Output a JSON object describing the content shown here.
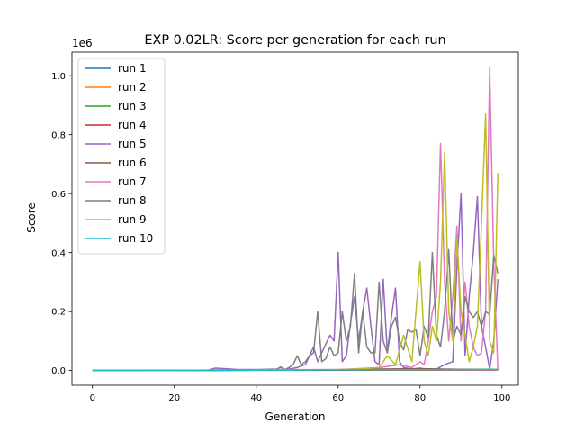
{
  "chart_data": {
    "type": "line",
    "title": "EXP 0.02LR: Score per generation for each run",
    "xlabel": "Generation",
    "ylabel": "Score",
    "y_offset_label": "1e6",
    "xlim": [
      -5,
      104
    ],
    "ylim": [
      -0.05,
      1.08
    ],
    "xticks": [
      0,
      20,
      40,
      60,
      80,
      100
    ],
    "xtick_labels": [
      "0",
      "20",
      "40",
      "60",
      "80",
      "100"
    ],
    "yticks": [
      0.0,
      0.2,
      0.4,
      0.6,
      0.8,
      1.0
    ],
    "ytick_labels": [
      "0.0",
      "0.2",
      "0.4",
      "0.6",
      "0.8",
      "1.0"
    ],
    "grid": false,
    "legend_position": "upper-left",
    "series": [
      {
        "name": "run 1",
        "color": "#1f77b4",
        "points": [
          [
            0,
            0.0
          ],
          [
            20,
            0.0
          ],
          [
            40,
            0.001
          ],
          [
            60,
            0.002
          ],
          [
            80,
            0.003
          ],
          [
            90,
            0.004
          ],
          [
            99,
            0.004
          ]
        ]
      },
      {
        "name": "run 2",
        "color": "#ff7f0e",
        "points": [
          [
            0,
            0.0
          ],
          [
            20,
            0.0
          ],
          [
            40,
            0.001
          ],
          [
            60,
            0.002
          ],
          [
            80,
            0.003
          ],
          [
            99,
            0.003
          ]
        ]
      },
      {
        "name": "run 3",
        "color": "#2ca02c",
        "points": [
          [
            0,
            0.0
          ],
          [
            20,
            0.001
          ],
          [
            40,
            0.001
          ],
          [
            60,
            0.002
          ],
          [
            80,
            0.002
          ],
          [
            99,
            0.003
          ]
        ]
      },
      {
        "name": "run 4",
        "color": "#d62728",
        "points": [
          [
            0,
            0.0
          ],
          [
            20,
            0.0
          ],
          [
            40,
            0.001
          ],
          [
            60,
            0.001
          ],
          [
            80,
            0.002
          ],
          [
            99,
            0.002
          ]
        ]
      },
      {
        "name": "run 5",
        "color": "#9467bd",
        "points": [
          [
            0,
            0.0
          ],
          [
            10,
            0.0
          ],
          [
            20,
            0.0
          ],
          [
            28,
            0.0
          ],
          [
            30,
            0.008
          ],
          [
            35,
            0.004
          ],
          [
            40,
            0.003
          ],
          [
            45,
            0.003
          ],
          [
            48,
            0.005
          ],
          [
            50,
            0.01
          ],
          [
            52,
            0.02
          ],
          [
            54,
            0.08
          ],
          [
            55,
            0.03
          ],
          [
            56,
            0.06
          ],
          [
            57,
            0.09
          ],
          [
            58,
            0.12
          ],
          [
            59,
            0.1
          ],
          [
            60,
            0.4
          ],
          [
            61,
            0.03
          ],
          [
            62,
            0.05
          ],
          [
            63,
            0.16
          ],
          [
            64,
            0.25
          ],
          [
            65,
            0.1
          ],
          [
            66,
            0.2
          ],
          [
            67,
            0.28
          ],
          [
            68,
            0.15
          ],
          [
            69,
            0.03
          ],
          [
            70,
            0.02
          ],
          [
            71,
            0.31
          ],
          [
            72,
            0.06
          ],
          [
            73,
            0.18
          ],
          [
            74,
            0.28
          ],
          [
            75,
            0.03
          ],
          [
            76,
            0.01
          ],
          [
            78,
            0.005
          ],
          [
            80,
            0.008
          ],
          [
            82,
            0.004
          ],
          [
            84,
            0.005
          ],
          [
            86,
            0.02
          ],
          [
            88,
            0.03
          ],
          [
            89,
            0.35
          ],
          [
            90,
            0.6
          ],
          [
            91,
            0.05
          ],
          [
            92,
            0.25
          ],
          [
            93,
            0.4
          ],
          [
            94,
            0.59
          ],
          [
            95,
            0.15
          ],
          [
            96,
            0.08
          ],
          [
            97,
            0.005
          ],
          [
            98,
            0.1
          ],
          [
            99,
            0.31
          ]
        ]
      },
      {
        "name": "run 6",
        "color": "#8c564b",
        "points": [
          [
            0,
            0.0
          ],
          [
            20,
            0.0
          ],
          [
            40,
            0.002
          ],
          [
            60,
            0.003
          ],
          [
            70,
            0.005
          ],
          [
            80,
            0.006
          ],
          [
            90,
            0.004
          ],
          [
            99,
            0.003
          ]
        ]
      },
      {
        "name": "run 7",
        "color": "#e377c2",
        "points": [
          [
            0,
            0.0
          ],
          [
            20,
            0.0
          ],
          [
            40,
            0.001
          ],
          [
            60,
            0.003
          ],
          [
            70,
            0.01
          ],
          [
            75,
            0.02
          ],
          [
            78,
            0.01
          ],
          [
            80,
            0.03
          ],
          [
            81,
            0.02
          ],
          [
            82,
            0.1
          ],
          [
            83,
            0.2
          ],
          [
            84,
            0.25
          ],
          [
            85,
            0.77
          ],
          [
            86,
            0.3
          ],
          [
            87,
            0.1
          ],
          [
            88,
            0.25
          ],
          [
            89,
            0.49
          ],
          [
            90,
            0.1
          ],
          [
            91,
            0.3
          ],
          [
            92,
            0.15
          ],
          [
            93,
            0.08
          ],
          [
            94,
            0.05
          ],
          [
            95,
            0.06
          ],
          [
            96,
            0.2
          ],
          [
            97,
            1.03
          ],
          [
            98,
            0.36
          ],
          [
            99,
            0.0
          ]
        ]
      },
      {
        "name": "run 8",
        "color": "#7f7f7f",
        "points": [
          [
            0,
            0.0
          ],
          [
            10,
            0.0
          ],
          [
            20,
            0.0
          ],
          [
            30,
            0.002
          ],
          [
            40,
            0.003
          ],
          [
            45,
            0.005
          ],
          [
            46,
            0.012
          ],
          [
            47,
            0.003
          ],
          [
            48,
            0.01
          ],
          [
            49,
            0.02
          ],
          [
            50,
            0.05
          ],
          [
            51,
            0.02
          ],
          [
            52,
            0.03
          ],
          [
            53,
            0.05
          ],
          [
            54,
            0.06
          ],
          [
            55,
            0.2
          ],
          [
            56,
            0.03
          ],
          [
            57,
            0.04
          ],
          [
            58,
            0.08
          ],
          [
            59,
            0.05
          ],
          [
            60,
            0.06
          ],
          [
            61,
            0.2
          ],
          [
            62,
            0.1
          ],
          [
            63,
            0.15
          ],
          [
            64,
            0.33
          ],
          [
            65,
            0.06
          ],
          [
            66,
            0.2
          ],
          [
            67,
            0.08
          ],
          [
            68,
            0.06
          ],
          [
            69,
            0.06
          ],
          [
            70,
            0.3
          ],
          [
            71,
            0.1
          ],
          [
            72,
            0.06
          ],
          [
            73,
            0.15
          ],
          [
            74,
            0.18
          ],
          [
            75,
            0.1
          ],
          [
            76,
            0.07
          ],
          [
            77,
            0.14
          ],
          [
            78,
            0.13
          ],
          [
            79,
            0.14
          ],
          [
            80,
            0.05
          ],
          [
            81,
            0.15
          ],
          [
            82,
            0.11
          ],
          [
            83,
            0.4
          ],
          [
            84,
            0.12
          ],
          [
            85,
            0.08
          ],
          [
            86,
            0.2
          ],
          [
            87,
            0.41
          ],
          [
            88,
            0.1
          ],
          [
            89,
            0.15
          ],
          [
            90,
            0.12
          ],
          [
            91,
            0.25
          ],
          [
            92,
            0.2
          ],
          [
            93,
            0.18
          ],
          [
            94,
            0.2
          ],
          [
            95,
            0.15
          ],
          [
            96,
            0.2
          ],
          [
            97,
            0.19
          ],
          [
            98,
            0.39
          ],
          [
            99,
            0.33
          ]
        ]
      },
      {
        "name": "run 9",
        "color": "#bcbd22",
        "points": [
          [
            0,
            0.0
          ],
          [
            20,
            0.0
          ],
          [
            40,
            0.002
          ],
          [
            50,
            0.003
          ],
          [
            60,
            0.003
          ],
          [
            65,
            0.005
          ],
          [
            70,
            0.01
          ],
          [
            72,
            0.05
          ],
          [
            74,
            0.02
          ],
          [
            76,
            0.12
          ],
          [
            78,
            0.03
          ],
          [
            80,
            0.37
          ],
          [
            81,
            0.1
          ],
          [
            82,
            0.05
          ],
          [
            83,
            0.15
          ],
          [
            84,
            0.1
          ],
          [
            85,
            0.3
          ],
          [
            86,
            0.74
          ],
          [
            87,
            0.2
          ],
          [
            88,
            0.1
          ],
          [
            89,
            0.45
          ],
          [
            90,
            0.2
          ],
          [
            91,
            0.12
          ],
          [
            92,
            0.03
          ],
          [
            93,
            0.08
          ],
          [
            94,
            0.15
          ],
          [
            95,
            0.5
          ],
          [
            96,
            0.87
          ],
          [
            97,
            0.1
          ],
          [
            98,
            0.06
          ],
          [
            99,
            0.67
          ]
        ]
      },
      {
        "name": "run 10",
        "color": "#17becf",
        "points": [
          [
            0,
            0.0
          ],
          [
            20,
            0.0
          ],
          [
            40,
            0.001
          ],
          [
            60,
            0.002
          ],
          [
            80,
            0.003
          ],
          [
            99,
            0.004
          ]
        ]
      }
    ]
  }
}
